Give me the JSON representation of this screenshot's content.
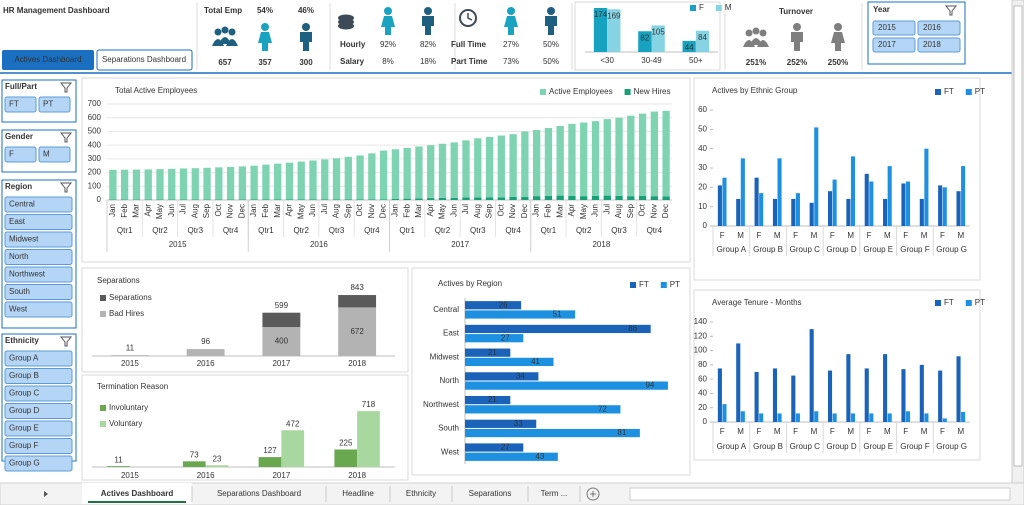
{
  "header": {
    "title": "HR Management Dashboard",
    "buttons": [
      "Actives Dashboard",
      "Separations Dashboard"
    ]
  },
  "kpis": {
    "total_emp": {
      "label": "Total Emp",
      "female_pct": "54%",
      "male_pct": "46%",
      "total": "657",
      "female": "357",
      "male": "300"
    },
    "pay": {
      "hourly_label": "Hourly",
      "hourly_female": "92%",
      "hourly_male": "82%",
      "salary_label": "Salary",
      "salary_female": "8%",
      "salary_male": "18%"
    },
    "time": {
      "full_label": "Full Time",
      "full_female": "27%",
      "full_male": "50%",
      "part_label": "Part Time",
      "part_female": "73%",
      "part_male": "50%"
    },
    "turnover": {
      "label": "Turnover",
      "values": [
        "251%",
        "252%",
        "250%"
      ]
    }
  },
  "year_slicer": {
    "title": "Year",
    "items": [
      "2015",
      "2016",
      "2017",
      "2018"
    ]
  },
  "slicers": [
    {
      "title": "Full/Part",
      "items": [
        "FT",
        "PT"
      ]
    },
    {
      "title": "Gender",
      "items": [
        "F",
        "M"
      ]
    },
    {
      "title": "Region",
      "items": [
        "Central",
        "East",
        "Midwest",
        "North",
        "Northwest",
        "South",
        "West"
      ]
    },
    {
      "title": "Ethnicity",
      "items": [
        "Group A",
        "Group B",
        "Group C",
        "Group D",
        "Group E",
        "Group F",
        "Group G"
      ]
    }
  ],
  "tabs": [
    "Actives Dashboard",
    "Separations Dashboard",
    "Headline",
    "Ethnicity",
    "Separations",
    "Term ..."
  ],
  "chart_data": [
    {
      "type": "stacked_bar",
      "title": "Total Active Employees",
      "categories": [
        "Jan",
        "Feb",
        "Mar",
        "Apr",
        "May",
        "Jun",
        "Jul",
        "Aug",
        "Sep",
        "Oct",
        "Nov",
        "Dec",
        "Jan",
        "Feb",
        "Mar",
        "Apr",
        "May",
        "Jun",
        "Jul",
        "Aug",
        "Sep",
        "Oct",
        "Nov",
        "Dec",
        "Jan",
        "Feb",
        "Mar",
        "Apr",
        "May",
        "Jun",
        "Jul",
        "Aug",
        "Sep",
        "Oct",
        "Nov",
        "Dec",
        "Jan",
        "Feb",
        "Mar",
        "Apr",
        "May",
        "Jun",
        "Jul",
        "Aug",
        "Sep",
        "Oct",
        "Nov",
        "Dec"
      ],
      "quarters": [
        "Qtr1",
        "Qtr2",
        "Qtr3",
        "Qtr4"
      ],
      "years": [
        "2015",
        "2016",
        "2017",
        "2018"
      ],
      "series": [
        {
          "name": "Active Employees",
          "color": "#7ed3b2",
          "values": [
            217,
            218,
            219,
            220,
            222,
            224,
            227,
            229,
            232,
            235,
            238,
            242,
            246,
            254,
            261,
            268,
            276,
            284,
            292,
            301,
            311,
            321,
            336,
            356,
            362,
            370,
            378,
            386,
            395,
            404,
            417,
            432,
            440,
            450,
            458,
            478,
            482,
            495,
            508,
            525,
            537,
            545,
            558,
            570,
            587,
            600,
            617,
            624
          ]
        },
        {
          "name": "New Hires",
          "color": "#17a077",
          "values": [
            3,
            3,
            3,
            3,
            3,
            3,
            3,
            3,
            3,
            3,
            3,
            3,
            4,
            4,
            4,
            4,
            4,
            4,
            4,
            4,
            4,
            4,
            4,
            4,
            8,
            10,
            12,
            14,
            15,
            16,
            18,
            18,
            20,
            20,
            22,
            22,
            28,
            30,
            32,
            30,
            28,
            30,
            32,
            30,
            28,
            30,
            28,
            26
          ]
        }
      ],
      "ylim": [
        0,
        700
      ],
      "yticks": [
        0,
        100,
        200,
        300,
        400,
        500,
        600,
        700
      ],
      "grid": true,
      "legend": "top-right"
    },
    {
      "type": "grouped_bar",
      "title": "Actives by Ethnic Group",
      "categories": [
        "F",
        "M",
        "F",
        "M",
        "F",
        "M",
        "F",
        "M",
        "F",
        "M",
        "F",
        "M",
        "F",
        "M"
      ],
      "groups": [
        "Group A",
        "Group B",
        "Group C",
        "Group D",
        "Group E",
        "Group F",
        "Group G"
      ],
      "series": [
        {
          "name": "FT",
          "color": "#1a63b8",
          "values": [
            21,
            14,
            25,
            14,
            14,
            12,
            18,
            14,
            27,
            14,
            22,
            14,
            21,
            18
          ]
        },
        {
          "name": "PT",
          "color": "#1e90e0",
          "values": [
            25,
            35,
            17,
            35,
            17,
            51,
            24,
            36,
            23,
            31,
            23,
            40,
            20,
            31
          ]
        }
      ],
      "ylim": [
        0,
        60
      ],
      "yticks": [
        0,
        10,
        20,
        30,
        40,
        50,
        60
      ],
      "grid": false,
      "legend": "top-right"
    },
    {
      "type": "stacked_bar",
      "title": "Separations",
      "categories": [
        "2015",
        "2016",
        "2017",
        "2018"
      ],
      "series": [
        {
          "name": "Separations",
          "color": "#5a5a5a",
          "values": [
            0,
            0,
            199,
            171
          ]
        },
        {
          "name": "Bad Hires",
          "color": "#b3b3b3",
          "values": [
            11,
            96,
            400,
            672
          ]
        }
      ],
      "totals": [
        11,
        96,
        599,
        843
      ],
      "legend": "top-left"
    },
    {
      "type": "grouped_bar",
      "title": "Termination Reason",
      "categories": [
        "2015",
        "2016",
        "2017",
        "2018"
      ],
      "series": [
        {
          "name": "Involuntary",
          "color": "#6aa84f",
          "values": [
            11,
            73,
            127,
            225
          ]
        },
        {
          "name": "Voluntary",
          "color": "#a8d8a0",
          "values": [
            null,
            23,
            472,
            718
          ]
        }
      ],
      "data_labels": true,
      "legend": "top-left"
    },
    {
      "type": "hbar",
      "title": "Actives by Region",
      "categories": [
        "Central",
        "East",
        "Midwest",
        "North",
        "Northwest",
        "South",
        "West"
      ],
      "series": [
        {
          "name": "FT",
          "color": "#1a63b8",
          "values": [
            26,
            86,
            21,
            34,
            21,
            33,
            27
          ]
        },
        {
          "name": "PT",
          "color": "#1e90e0",
          "values": [
            51,
            27,
            41,
            94,
            72,
            81,
            43
          ]
        }
      ],
      "data_labels": true,
      "legend": "top-right"
    },
    {
      "type": "grouped_bar",
      "title": "Average Tenure - Months",
      "categories": [
        "F",
        "M",
        "F",
        "M",
        "F",
        "M",
        "F",
        "M",
        "F",
        "M",
        "F",
        "M",
        "F",
        "M"
      ],
      "groups": [
        "Group A",
        "Group B",
        "Group C",
        "Group D",
        "Group E",
        "Group F",
        "Group G"
      ],
      "series": [
        {
          "name": "FT",
          "color": "#1a63b8",
          "values": [
            75,
            110,
            70,
            75,
            65,
            130,
            72,
            95,
            75,
            95,
            74,
            80,
            72,
            92
          ]
        },
        {
          "name": "PT",
          "color": "#1e90e0",
          "values": [
            25,
            15,
            12,
            12,
            12,
            15,
            12,
            12,
            12,
            12,
            15,
            12,
            5,
            14
          ]
        }
      ],
      "ylim": [
        0,
        140
      ],
      "yticks": [
        0,
        20,
        40,
        60,
        80,
        100,
        120,
        140
      ],
      "grid": false,
      "legend": "top-right"
    },
    {
      "type": "grouped_bar",
      "categories": [
        "<30",
        "30-49",
        "50+"
      ],
      "series": [
        {
          "name": "F",
          "color": "#17a2bf",
          "values": [
            174,
            82,
            44
          ]
        },
        {
          "name": "M",
          "color": "#86d3e3",
          "values": [
            169,
            105,
            84
          ]
        }
      ],
      "data_labels": true,
      "legend": "top-right"
    }
  ]
}
